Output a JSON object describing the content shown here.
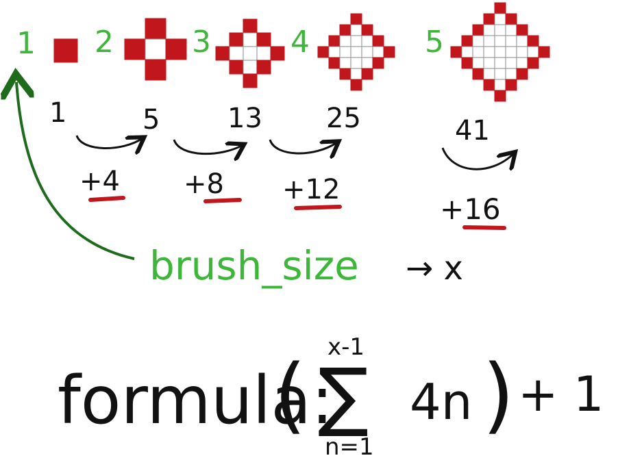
{
  "colors": {
    "red": "#c0161c",
    "green": "#3db63a",
    "dark_green": "#1e6b1c",
    "black": "#111111",
    "grid": "#8a8a8a",
    "white": "#ffffff"
  },
  "brushes": [
    {
      "label": "1",
      "count": "1",
      "size": 1
    },
    {
      "label": "2",
      "count": "5",
      "size": 2
    },
    {
      "label": "3",
      "count": "13",
      "size": 3
    },
    {
      "label": "4",
      "count": "25",
      "size": 4
    },
    {
      "label": "5",
      "count": "41",
      "size": 5
    }
  ],
  "increments": [
    "+4",
    "+8",
    "+12",
    "+16"
  ],
  "brush_label": "brush_size",
  "arrow_target": "→ x",
  "formula": {
    "label": "formula:",
    "upper": "x-1",
    "term": "4n",
    "lower": "n=1",
    "tail": "+ 1"
  }
}
